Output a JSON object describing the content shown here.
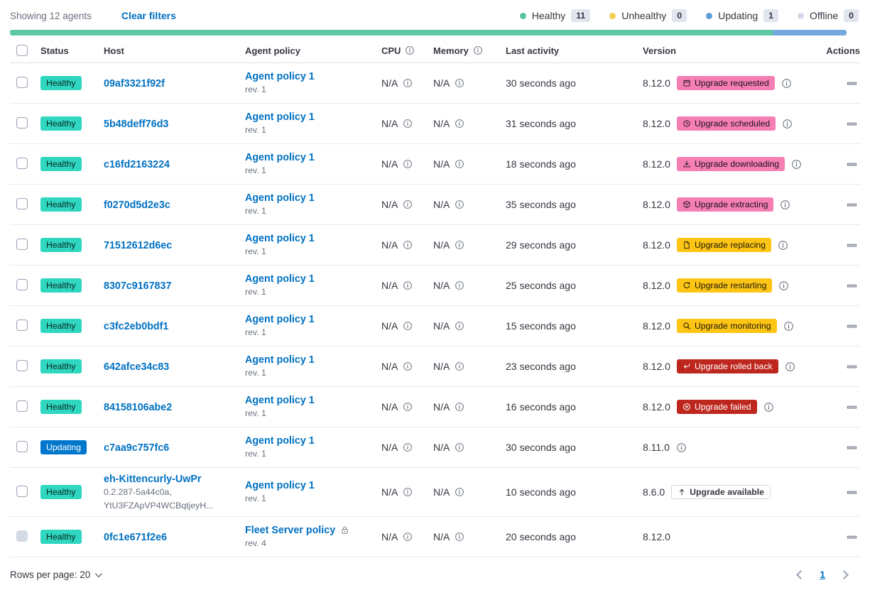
{
  "colors": {
    "healthy": "#2fd6c0",
    "updating": "#0077cc",
    "pink": "#f57eb5",
    "yellow": "#fec514",
    "red": "#bd271e"
  },
  "toolbar": {
    "showing": "Showing 12 agents",
    "clear_filters": "Clear filters"
  },
  "legend": [
    {
      "label": "Healthy",
      "count": "11",
      "color": "#57c3a2"
    },
    {
      "label": "Unhealthy",
      "count": "0",
      "color": "#f1ce55"
    },
    {
      "label": "Updating",
      "count": "1",
      "color": "#5e9fd6"
    },
    {
      "label": "Offline",
      "count": "0",
      "color": "#d3dae6"
    }
  ],
  "health_bar": [
    {
      "color": "#5dc9a3",
      "pct": 91.2
    },
    {
      "color": "#73a9dc",
      "pct": 8.8
    }
  ],
  "headers": {
    "status": "Status",
    "host": "Host",
    "policy": "Agent policy",
    "cpu": "CPU",
    "memory": "Memory",
    "last_activity": "Last activity",
    "version": "Version",
    "actions": "Actions"
  },
  "rows": [
    {
      "status": {
        "label": "Healthy",
        "variant": "healthy"
      },
      "host": {
        "name": "09af3321f92f",
        "sub": []
      },
      "policy": {
        "name": "Agent policy 1",
        "rev": "rev. 1",
        "locked": false
      },
      "cpu": "N/A",
      "memory": "N/A",
      "last_activity": "30 seconds ago",
      "version": "8.12.0",
      "badge": {
        "label": "Upgrade requested",
        "variant": "pink",
        "icon": "calendar"
      },
      "info": true,
      "checkbox_disabled": false
    },
    {
      "status": {
        "label": "Healthy",
        "variant": "healthy"
      },
      "host": {
        "name": "5b48deff76d3",
        "sub": []
      },
      "policy": {
        "name": "Agent policy 1",
        "rev": "rev. 1",
        "locked": false
      },
      "cpu": "N/A",
      "memory": "N/A",
      "last_activity": "31 seconds ago",
      "version": "8.12.0",
      "badge": {
        "label": "Upgrade scheduled",
        "variant": "pink",
        "icon": "clock"
      },
      "info": true,
      "checkbox_disabled": false
    },
    {
      "status": {
        "label": "Healthy",
        "variant": "healthy"
      },
      "host": {
        "name": "c16fd2163224",
        "sub": []
      },
      "policy": {
        "name": "Agent policy 1",
        "rev": "rev. 1",
        "locked": false
      },
      "cpu": "N/A",
      "memory": "N/A",
      "last_activity": "18 seconds ago",
      "version": "8.12.0",
      "badge": {
        "label": "Upgrade downloading",
        "variant": "pink",
        "icon": "download"
      },
      "info": true,
      "checkbox_disabled": false
    },
    {
      "status": {
        "label": "Healthy",
        "variant": "healthy"
      },
      "host": {
        "name": "f0270d5d2e3c",
        "sub": []
      },
      "policy": {
        "name": "Agent policy 1",
        "rev": "rev. 1",
        "locked": false
      },
      "cpu": "N/A",
      "memory": "N/A",
      "last_activity": "35 seconds ago",
      "version": "8.12.0",
      "badge": {
        "label": "Upgrade extracting",
        "variant": "pink",
        "icon": "package"
      },
      "info": true,
      "checkbox_disabled": false
    },
    {
      "status": {
        "label": "Healthy",
        "variant": "healthy"
      },
      "host": {
        "name": "71512612d6ec",
        "sub": []
      },
      "policy": {
        "name": "Agent policy 1",
        "rev": "rev. 1",
        "locked": false
      },
      "cpu": "N/A",
      "memory": "N/A",
      "last_activity": "29 seconds ago",
      "version": "8.12.0",
      "badge": {
        "label": "Upgrade replacing",
        "variant": "yellow",
        "icon": "document"
      },
      "info": true,
      "checkbox_disabled": false
    },
    {
      "status": {
        "label": "Healthy",
        "variant": "healthy"
      },
      "host": {
        "name": "8307c9167837",
        "sub": []
      },
      "policy": {
        "name": "Agent policy 1",
        "rev": "rev. 1",
        "locked": false
      },
      "cpu": "N/A",
      "memory": "N/A",
      "last_activity": "25 seconds ago",
      "version": "8.12.0",
      "badge": {
        "label": "Upgrade restarting",
        "variant": "yellow",
        "icon": "refresh"
      },
      "info": true,
      "checkbox_disabled": false
    },
    {
      "status": {
        "label": "Healthy",
        "variant": "healthy"
      },
      "host": {
        "name": "c3fc2eb0bdf1",
        "sub": []
      },
      "policy": {
        "name": "Agent policy 1",
        "rev": "rev. 1",
        "locked": false
      },
      "cpu": "N/A",
      "memory": "N/A",
      "last_activity": "15 seconds ago",
      "version": "8.12.0",
      "badge": {
        "label": "Upgrade monitoring",
        "variant": "yellow",
        "icon": "inspect"
      },
      "info": true,
      "checkbox_disabled": false
    },
    {
      "status": {
        "label": "Healthy",
        "variant": "healthy"
      },
      "host": {
        "name": "642afce34c83",
        "sub": []
      },
      "policy": {
        "name": "Agent policy 1",
        "rev": "rev. 1",
        "locked": false
      },
      "cpu": "N/A",
      "memory": "N/A",
      "last_activity": "23 seconds ago",
      "version": "8.12.0",
      "badge": {
        "label": "Upgrade rolled back",
        "variant": "red",
        "icon": "return"
      },
      "info": true,
      "checkbox_disabled": false
    },
    {
      "status": {
        "label": "Healthy",
        "variant": "healthy"
      },
      "host": {
        "name": "84158106abe2",
        "sub": []
      },
      "policy": {
        "name": "Agent policy 1",
        "rev": "rev. 1",
        "locked": false
      },
      "cpu": "N/A",
      "memory": "N/A",
      "last_activity": "16 seconds ago",
      "version": "8.12.0",
      "badge": {
        "label": "Upgrade failed",
        "variant": "red",
        "icon": "error"
      },
      "info": true,
      "checkbox_disabled": false
    },
    {
      "status": {
        "label": "Updating",
        "variant": "updating"
      },
      "host": {
        "name": "c7aa9c757fc6",
        "sub": []
      },
      "policy": {
        "name": "Agent policy 1",
        "rev": "rev. 1",
        "locked": false
      },
      "cpu": "N/A",
      "memory": "N/A",
      "last_activity": "30 seconds ago",
      "version": "8.11.0",
      "badge": null,
      "info": true,
      "checkbox_disabled": false
    },
    {
      "status": {
        "label": "Healthy",
        "variant": "healthy"
      },
      "host": {
        "name": "eh-Kittencurly-UwPr",
        "sub": [
          "0.2.287-5a44c0a,",
          "YtU3FZApVP4WCBqtjeyH..."
        ]
      },
      "policy": {
        "name": "Agent policy 1",
        "rev": "rev. 1",
        "locked": false
      },
      "cpu": "N/A",
      "memory": "N/A",
      "last_activity": "10 seconds ago",
      "version": "8.6.0",
      "badge": {
        "label": "Upgrade available",
        "variant": "outline",
        "icon": "arrow-up"
      },
      "info": false,
      "checkbox_disabled": false
    },
    {
      "status": {
        "label": "Healthy",
        "variant": "healthy"
      },
      "host": {
        "name": "0fc1e671f2e6",
        "sub": []
      },
      "policy": {
        "name": "Fleet Server policy",
        "rev": "rev. 4",
        "locked": true
      },
      "cpu": "N/A",
      "memory": "N/A",
      "last_activity": "20 seconds ago",
      "version": "8.12.0",
      "badge": null,
      "info": false,
      "checkbox_disabled": true
    }
  ],
  "footer": {
    "rows_per_page": "Rows per page: 20",
    "page": "1"
  }
}
